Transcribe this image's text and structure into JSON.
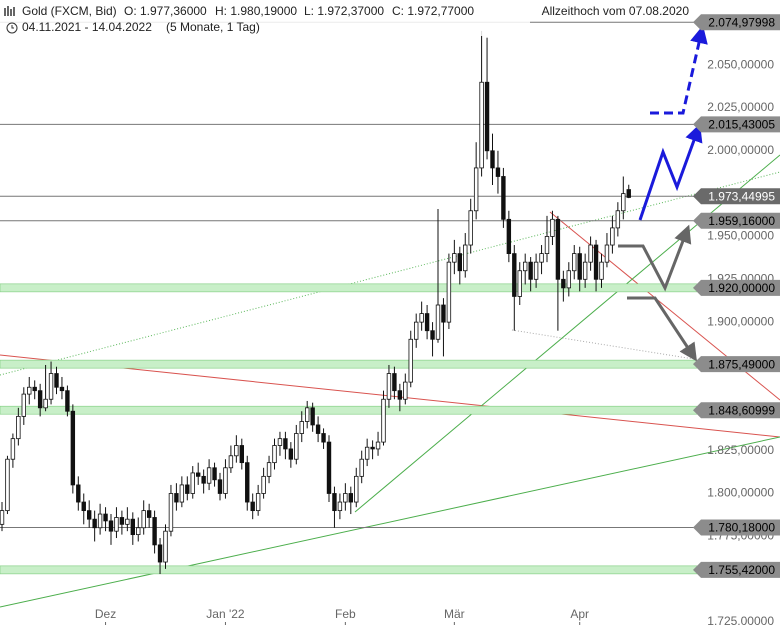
{
  "chart_data": {
    "type": "candlestick",
    "title": "Gold (FXCM, Bid)",
    "quote": [
      "O: 1.977,36000",
      "H: 1.980,19000",
      "L: 1.972,37000",
      "C: 1.972,77000"
    ],
    "period": "04.11.2021 - 14.04.2022",
    "interval": "(5 Monate, 1 Tag)",
    "annotation": "Allzeithoch vom 07.08.2020",
    "ylim": [
      1725,
      2088
    ],
    "yticks": [
      {
        "value": 2050,
        "label": "2.050,00000"
      },
      {
        "value": 2025,
        "label": "2.025,00000"
      },
      {
        "value": 2000,
        "label": "2.000,00000"
      },
      {
        "value": 1950,
        "label": "1.950,00000"
      },
      {
        "value": 1925,
        "label": "1.925,00000"
      },
      {
        "value": 1900,
        "label": "1.900,00000"
      },
      {
        "value": 1825,
        "label": "1.825,00000"
      },
      {
        "value": 1800,
        "label": "1.800,00000"
      },
      {
        "value": 1775,
        "label": "1.775,00000"
      },
      {
        "value": 1725,
        "label": "1.725,00000"
      }
    ],
    "levels": [
      {
        "value": 2074.97998,
        "label": "2.074,97998",
        "band": false
      },
      {
        "value": 2015.43005,
        "label": "2.015,43005",
        "band": false
      },
      {
        "value": 1973.44995,
        "label": "1.973,44995",
        "band": false
      },
      {
        "value": 1959.16,
        "label": "1.959,16000",
        "band": false
      },
      {
        "value": 1920,
        "label": "1.920,00000",
        "band": true
      },
      {
        "value": 1875.49,
        "label": "1.875,49000",
        "band": true
      },
      {
        "value": 1848.60999,
        "label": "1.848,60999",
        "band": true
      },
      {
        "value": 1780.18,
        "label": "1.780,18000",
        "band": false
      },
      {
        "value": 1755.42,
        "label": "1.755,42000",
        "band": true
      }
    ],
    "categories": [
      null,
      null,
      null,
      null,
      null,
      null,
      null,
      null,
      null,
      null,
      null,
      null,
      null,
      null,
      null,
      null,
      null,
      null,
      null,
      "Dez",
      null,
      null,
      null,
      null,
      null,
      null,
      null,
      null,
      null,
      null,
      null,
      null,
      null,
      null,
      null,
      null,
      null,
      null,
      null,
      null,
      null,
      "Jan '22",
      null,
      null,
      null,
      null,
      null,
      null,
      null,
      null,
      null,
      null,
      null,
      null,
      null,
      null,
      null,
      null,
      null,
      null,
      null,
      null,
      null,
      "Feb",
      null,
      null,
      null,
      null,
      null,
      null,
      null,
      null,
      null,
      null,
      null,
      null,
      null,
      null,
      null,
      null,
      null,
      null,
      null,
      "Mär",
      null,
      null,
      null,
      null,
      null,
      null,
      null,
      null,
      null,
      null,
      null,
      null,
      null,
      null,
      null,
      null,
      null,
      null,
      null,
      null,
      null,
      null,
      "Apr",
      null,
      null,
      null,
      null,
      null,
      null,
      null,
      null,
      null
    ],
    "ohlc": [
      [
        1782,
        1795,
        1778,
        1790
      ],
      [
        1790,
        1822,
        1788,
        1820
      ],
      [
        1820,
        1835,
        1815,
        1832
      ],
      [
        1832,
        1850,
        1828,
        1845
      ],
      [
        1845,
        1862,
        1840,
        1858
      ],
      [
        1858,
        1868,
        1852,
        1862
      ],
      [
        1862,
        1866,
        1855,
        1860
      ],
      [
        1860,
        1864,
        1845,
        1850
      ],
      [
        1850,
        1875,
        1848,
        1855
      ],
      [
        1855,
        1877,
        1852,
        1870
      ],
      [
        1870,
        1874,
        1858,
        1862
      ],
      [
        1862,
        1868,
        1855,
        1860
      ],
      [
        1860,
        1863,
        1845,
        1848
      ],
      [
        1848,
        1852,
        1800,
        1805
      ],
      [
        1805,
        1810,
        1790,
        1795
      ],
      [
        1795,
        1800,
        1782,
        1790
      ],
      [
        1790,
        1796,
        1780,
        1785
      ],
      [
        1785,
        1790,
        1772,
        1780
      ],
      [
        1780,
        1794,
        1776,
        1788
      ],
      [
        1788,
        1792,
        1778,
        1784
      ],
      [
        1784,
        1788,
        1770,
        1778
      ],
      [
        1778,
        1792,
        1774,
        1786
      ],
      [
        1786,
        1790,
        1776,
        1782
      ],
      [
        1782,
        1792,
        1778,
        1785
      ],
      [
        1785,
        1789,
        1770,
        1776
      ],
      [
        1776,
        1786,
        1772,
        1780
      ],
      [
        1780,
        1796,
        1776,
        1790
      ],
      [
        1790,
        1794,
        1780,
        1786
      ],
      [
        1786,
        1790,
        1765,
        1770
      ],
      [
        1770,
        1774,
        1753,
        1760
      ],
      [
        1760,
        1782,
        1756,
        1778
      ],
      [
        1778,
        1805,
        1775,
        1800
      ],
      [
        1800,
        1806,
        1790,
        1795
      ],
      [
        1795,
        1810,
        1792,
        1805
      ],
      [
        1805,
        1810,
        1796,
        1800
      ],
      [
        1800,
        1816,
        1797,
        1812
      ],
      [
        1812,
        1818,
        1805,
        1810
      ],
      [
        1810,
        1814,
        1800,
        1806
      ],
      [
        1806,
        1820,
        1802,
        1815
      ],
      [
        1815,
        1818,
        1804,
        1808
      ],
      [
        1808,
        1812,
        1796,
        1800
      ],
      [
        1800,
        1820,
        1797,
        1815
      ],
      [
        1815,
        1828,
        1812,
        1822
      ],
      [
        1822,
        1834,
        1818,
        1828
      ],
      [
        1828,
        1832,
        1814,
        1818
      ],
      [
        1818,
        1822,
        1790,
        1795
      ],
      [
        1795,
        1800,
        1785,
        1790
      ],
      [
        1790,
        1805,
        1787,
        1800
      ],
      [
        1800,
        1815,
        1797,
        1810
      ],
      [
        1810,
        1822,
        1806,
        1818
      ],
      [
        1818,
        1832,
        1814,
        1828
      ],
      [
        1828,
        1836,
        1822,
        1832
      ],
      [
        1832,
        1836,
        1820,
        1826
      ],
      [
        1826,
        1830,
        1815,
        1820
      ],
      [
        1820,
        1840,
        1817,
        1835
      ],
      [
        1835,
        1848,
        1830,
        1842
      ],
      [
        1842,
        1854,
        1838,
        1850
      ],
      [
        1850,
        1853,
        1836,
        1840
      ],
      [
        1840,
        1845,
        1830,
        1835
      ],
      [
        1835,
        1838,
        1826,
        1830
      ],
      [
        1830,
        1834,
        1795,
        1800
      ],
      [
        1800,
        1804,
        1780,
        1790
      ],
      [
        1790,
        1800,
        1785,
        1795
      ],
      [
        1795,
        1806,
        1790,
        1800
      ],
      [
        1800,
        1804,
        1788,
        1795
      ],
      [
        1795,
        1815,
        1792,
        1810
      ],
      [
        1810,
        1825,
        1806,
        1820
      ],
      [
        1820,
        1832,
        1816,
        1827
      ],
      [
        1827,
        1831,
        1820,
        1826
      ],
      [
        1826,
        1836,
        1822,
        1830
      ],
      [
        1830,
        1860,
        1828,
        1855
      ],
      [
        1855,
        1875,
        1850,
        1870
      ],
      [
        1870,
        1874,
        1855,
        1860
      ],
      [
        1860,
        1864,
        1848,
        1855
      ],
      [
        1855,
        1870,
        1852,
        1865
      ],
      [
        1865,
        1895,
        1862,
        1890
      ],
      [
        1890,
        1905,
        1885,
        1900
      ],
      [
        1900,
        1912,
        1895,
        1905
      ],
      [
        1905,
        1910,
        1890,
        1895
      ],
      [
        1895,
        1900,
        1880,
        1890
      ],
      [
        1890,
        1966,
        1888,
        1910
      ],
      [
        1910,
        1914,
        1880,
        1900
      ],
      [
        1900,
        1940,
        1896,
        1935
      ],
      [
        1935,
        1948,
        1928,
        1940
      ],
      [
        1940,
        1944,
        1922,
        1930
      ],
      [
        1930,
        1952,
        1926,
        1945
      ],
      [
        1945,
        1972,
        1940,
        1965
      ],
      [
        1965,
        2005,
        1960,
        1990
      ],
      [
        1990,
        2070,
        1985,
        2040
      ],
      [
        2040,
        2066,
        1995,
        2000
      ],
      [
        2000,
        2010,
        1980,
        1990
      ],
      [
        1990,
        2000,
        1975,
        1985
      ],
      [
        1985,
        1990,
        1955,
        1960
      ],
      [
        1960,
        1965,
        1935,
        1940
      ],
      [
        1940,
        1945,
        1895,
        1915
      ],
      [
        1915,
        1935,
        1910,
        1930
      ],
      [
        1930,
        1940,
        1922,
        1935
      ],
      [
        1935,
        1938,
        1918,
        1925
      ],
      [
        1925,
        1940,
        1920,
        1935
      ],
      [
        1935,
        1945,
        1928,
        1940
      ],
      [
        1940,
        1962,
        1935,
        1950
      ],
      [
        1950,
        1965,
        1945,
        1960
      ],
      [
        1960,
        1962,
        1895,
        1925
      ],
      [
        1925,
        1930,
        1912,
        1920
      ],
      [
        1920,
        1935,
        1915,
        1930
      ],
      [
        1930,
        1945,
        1925,
        1940
      ],
      [
        1940,
        1944,
        1918,
        1925
      ],
      [
        1925,
        1940,
        1920,
        1935
      ],
      [
        1935,
        1950,
        1930,
        1945
      ],
      [
        1945,
        1948,
        1918,
        1925
      ],
      [
        1925,
        1940,
        1920,
        1935
      ],
      [
        1935,
        1952,
        1932,
        1945
      ],
      [
        1945,
        1962,
        1940,
        1955
      ],
      [
        1955,
        1970,
        1950,
        1965
      ],
      [
        1965,
        1985,
        1960,
        1975
      ],
      [
        1977.36,
        1980.19,
        1972.37,
        1972.77
      ]
    ]
  }
}
